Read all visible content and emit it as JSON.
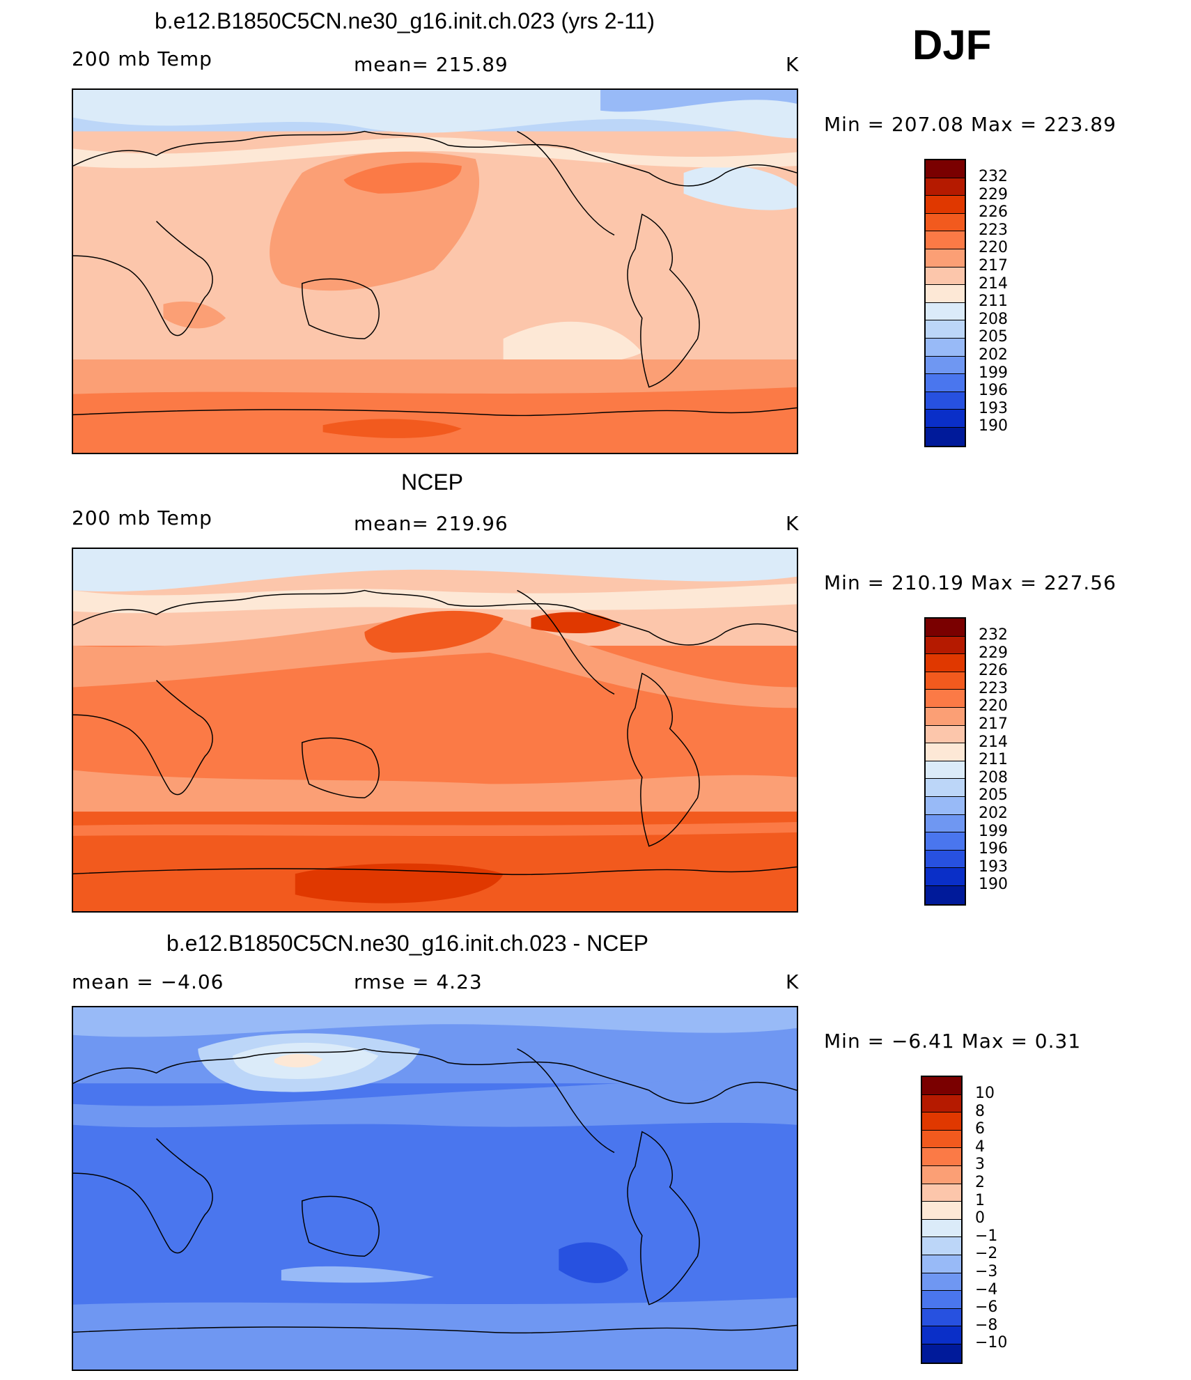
{
  "season": "DJF",
  "panels": [
    {
      "title": "b.e12.B1850C5CN.ne30_g16.init.ch.023 (yrs 2-11)",
      "left_label": "200 mb Temp",
      "center_label": "mean=  215.89",
      "units": "K",
      "range": "Min  =  207.08  Max  =  223.89",
      "colorbar_ticks": [
        "232",
        "229",
        "226",
        "223",
        "220",
        "217",
        "214",
        "211",
        "208",
        "205",
        "202",
        "199",
        "196",
        "193",
        "190"
      ]
    },
    {
      "title": "NCEP",
      "left_label": "200 mb Temp",
      "center_label": "mean=  219.96",
      "units": "K",
      "range": "Min  =  210.19  Max  =  227.56",
      "colorbar_ticks": [
        "232",
        "229",
        "226",
        "223",
        "220",
        "217",
        "214",
        "211",
        "208",
        "205",
        "202",
        "199",
        "196",
        "193",
        "190"
      ]
    },
    {
      "title": "b.e12.B1850C5CN.ne30_g16.init.ch.023 - NCEP",
      "left_label": "mean  =     −4.06",
      "center_label": "rmse  =     4.23",
      "units": "K",
      "range": "Min  =    −6.41  Max  =     0.31",
      "colorbar_ticks": [
        "10",
        "8",
        "6",
        "4",
        "3",
        "2",
        "1",
        "0",
        "−1",
        "−2",
        "−3",
        "−4",
        "−6",
        "−8",
        "−10"
      ]
    }
  ],
  "colors": {
    "scale": [
      "#7a0000",
      "#b51a00",
      "#e03800",
      "#f25a1e",
      "#fb7a46",
      "#fb9f75",
      "#fcc6ab",
      "#fde8d6",
      "#dbebf9",
      "#bcd6f8",
      "#98baf7",
      "#6f97f2",
      "#4a76ee",
      "#2751e0",
      "#0a2fc8",
      "#001a9a",
      "#000d78"
    ]
  }
}
